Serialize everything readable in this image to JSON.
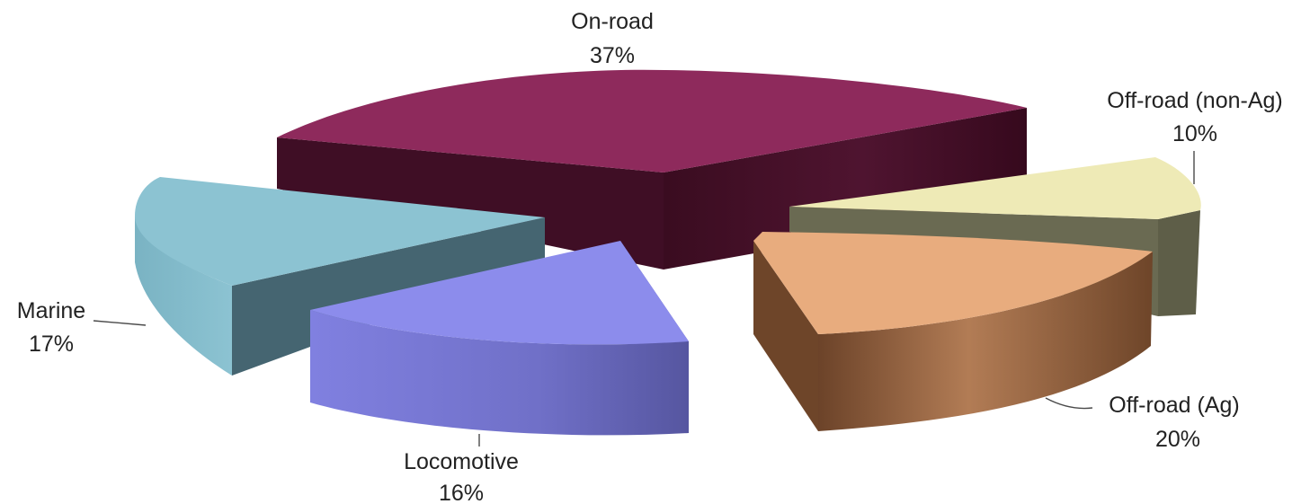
{
  "chart_data": {
    "type": "pie",
    "style": "3d-exploded",
    "title": "",
    "slices": [
      {
        "label": "On-road",
        "percent_label": "37%",
        "value": 37,
        "color": "#8e2a5c",
        "side_color": "#4a1029"
      },
      {
        "label": "Off-road (non-Ag)",
        "percent_label": "10%",
        "value": 10,
        "color": "#eeeab6",
        "side_color": "#6f6f55"
      },
      {
        "label": "Off-road (Ag)",
        "percent_label": "20%",
        "value": 20,
        "color": "#e8ac7e",
        "side_color": "#7a5034"
      },
      {
        "label": "Locomotive",
        "percent_label": "16%",
        "value": 16,
        "color": "#8c8cec",
        "side_color": "#6262b8"
      },
      {
        "label": "Marine",
        "percent_label": "17%",
        "value": 17,
        "color": "#8cc3d2",
        "side_color": "#456571"
      }
    ],
    "legend": "none"
  }
}
